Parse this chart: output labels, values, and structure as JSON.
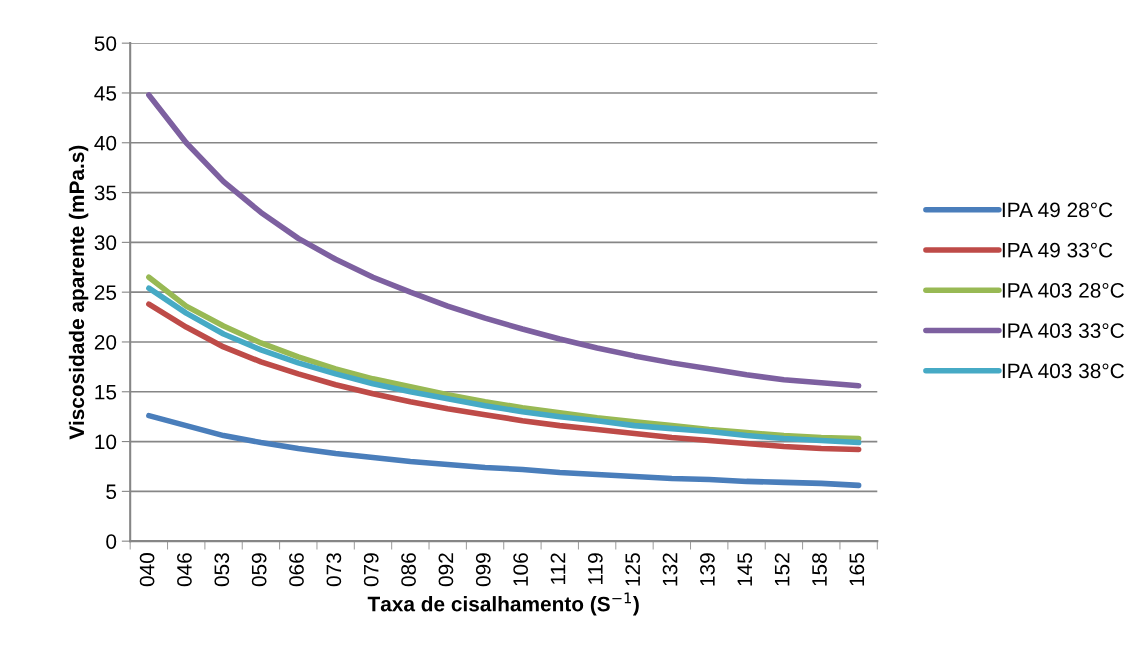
{
  "chart_data": {
    "type": "line",
    "xlabel": "Taxa de cisalhamento (S$^{−1}$)",
    "ylabel": "Viscosidade aparente (mPa.s)",
    "categories": [
      "040",
      "046",
      "053",
      "059",
      "066",
      "073",
      "079",
      "086",
      "092",
      "099",
      "106",
      "112",
      "119",
      "125",
      "132",
      "139",
      "145",
      "152",
      "158",
      "165"
    ],
    "ylim": [
      0,
      50
    ],
    "yticks": [
      0,
      5,
      10,
      15,
      20,
      25,
      30,
      35,
      40,
      45,
      50
    ],
    "grid": "y",
    "legend": "right",
    "marker": "none",
    "line_style": "solid",
    "series": [
      {
        "name": "IPA 49 28°C",
        "color": "#4a7ebb",
        "values": [
          12.6,
          11.6,
          10.6,
          9.9,
          9.3,
          8.8,
          8.4,
          8.0,
          7.7,
          7.4,
          7.2,
          6.9,
          6.7,
          6.5,
          6.3,
          6.2,
          6.0,
          5.9,
          5.8,
          5.6
        ]
      },
      {
        "name": "IPA 49 33°C",
        "color": "#be4b48",
        "values": [
          23.8,
          21.5,
          19.5,
          18.0,
          16.8,
          15.7,
          14.8,
          14.0,
          13.3,
          12.7,
          12.1,
          11.6,
          11.2,
          10.8,
          10.4,
          10.1,
          9.8,
          9.5,
          9.3,
          9.2
        ]
      },
      {
        "name": "IPA 403 28°C",
        "color": "#98b954",
        "values": [
          26.5,
          23.6,
          21.6,
          19.9,
          18.5,
          17.3,
          16.3,
          15.5,
          14.7,
          14.0,
          13.4,
          12.9,
          12.4,
          12.0,
          11.6,
          11.2,
          10.9,
          10.6,
          10.4,
          10.3
        ]
      },
      {
        "name": "IPA 403 33°C",
        "color": "#7d60a0",
        "values": [
          44.8,
          40.0,
          36.1,
          33.0,
          30.4,
          28.3,
          26.5,
          25.0,
          23.6,
          22.4,
          21.3,
          20.3,
          19.4,
          18.6,
          17.9,
          17.3,
          16.7,
          16.2,
          15.9,
          15.6
        ]
      },
      {
        "name": "IPA 403 38°C",
        "color": "#46aac5",
        "values": [
          25.4,
          22.9,
          20.8,
          19.2,
          17.9,
          16.8,
          15.8,
          15.0,
          14.3,
          13.6,
          13.0,
          12.5,
          12.1,
          11.6,
          11.3,
          11.0,
          10.6,
          10.3,
          10.1,
          9.9
        ]
      }
    ]
  }
}
